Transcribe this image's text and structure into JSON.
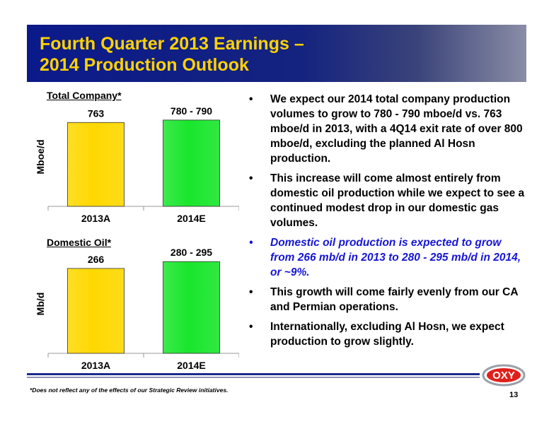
{
  "header": {
    "title_line1": "Fourth Quarter 2013 Earnings –",
    "title_line2": "2014 Production Outlook"
  },
  "chart_data": [
    {
      "type": "bar",
      "title": "Total Company*",
      "ylabel": "Mboe/d",
      "categories": [
        "2013A",
        "2014E"
      ],
      "values": [
        763,
        785
      ],
      "value_labels": [
        "763",
        "780 - 790"
      ],
      "colors": [
        "#ffd800",
        "#19e62c"
      ],
      "ylim": [
        0,
        900
      ],
      "grid": false
    },
    {
      "type": "bar",
      "title": "Domestic Oil*",
      "ylabel": "Mb/d",
      "categories": [
        "2013A",
        "2014E"
      ],
      "values": [
        266,
        287.5
      ],
      "value_labels": [
        "266",
        "280 - 295"
      ],
      "colors": [
        "#ffd800",
        "#19e62c"
      ],
      "ylim": [
        0,
        310
      ],
      "grid": false
    }
  ],
  "bullets": [
    "We expect our 2014 total company production volumes to grow to 780 - 790 mboe/d vs. 763 mboe/d in 2013, with a 4Q14 exit rate of over 800 mboe/d, excluding the planned Al Hosn production.",
    "This increase will come almost entirely from domestic oil production while we expect to see a continued modest drop in our domestic gas volumes.",
    "Domestic oil production is expected to grow from 266 mb/d in 2013 to 280 - 295 mb/d in 2014, or ~9%.",
    "This growth will come fairly evenly from our CA and Permian operations.",
    "Internationally, excluding Al Hosn, we expect production to grow slightly."
  ],
  "bullet_marker": "•",
  "footer": {
    "footnote": "*Does not reflect any of the effects of our Strategic Review initiatives.",
    "page_number": "13",
    "logo_text": "OXY"
  },
  "colors": {
    "title_yellow": "#ffd200",
    "header_navy": "#0b1a8a",
    "highlight_blue": "#1616d6",
    "logo_red": "#e0201b"
  }
}
